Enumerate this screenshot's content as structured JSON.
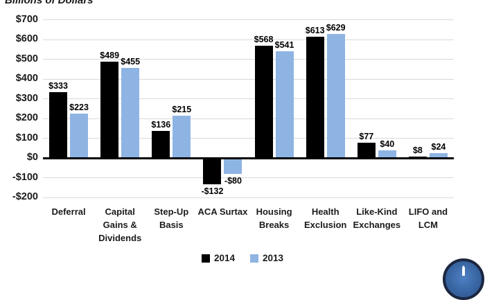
{
  "chart_data": {
    "type": "bar",
    "title": "Billions of Dollars",
    "categories": [
      "Deferral",
      "Capital Gains & Dividends",
      "Step-Up Basis",
      "ACA Surtax",
      "Housing Breaks",
      "Health Exclusion",
      "Like-Kind Exchanges",
      "LIFO and LCM"
    ],
    "category_lines": [
      [
        "Deferral"
      ],
      [
        "Capital",
        "Gains &",
        "Dividends"
      ],
      [
        "Step-Up",
        "Basis"
      ],
      [
        "ACA Surtax"
      ],
      [
        "Housing",
        "Breaks"
      ],
      [
        "Health",
        "Exclusion"
      ],
      [
        "Like-Kind",
        "Exchanges"
      ],
      [
        "LIFO and",
        "LCM"
      ]
    ],
    "series": [
      {
        "name": "2014",
        "color": "#000000",
        "values": [
          333,
          489,
          136,
          -132,
          568,
          613,
          77,
          8
        ]
      },
      {
        "name": "2013",
        "color": "#8EB4E3",
        "values": [
          223,
          455,
          215,
          -80,
          541,
          629,
          40,
          24
        ]
      }
    ],
    "data_labels": [
      [
        "$333",
        "$489",
        "$136",
        "-$132",
        "$568",
        "$613",
        "$77",
        "$8"
      ],
      [
        "$223",
        "$455",
        "$215",
        "-$80",
        "$541",
        "$629",
        "$40",
        "$24"
      ]
    ],
    "ylim": [
      -200,
      700
    ],
    "ytick_step": 100,
    "ytick_labels": [
      "$700",
      "$600",
      "$500",
      "$400",
      "$300",
      "$200",
      "$100",
      "$0",
      "-$100",
      "-$200"
    ],
    "grid": true,
    "gridline_color": "#d9d9d9",
    "legend_position": "bottom"
  },
  "legend": {
    "items": [
      {
        "label": "2014",
        "color": "#000000"
      },
      {
        "label": "2013",
        "color": "#8EB4E3"
      }
    ]
  },
  "logo": {
    "name": "tax-foundation-seal",
    "ring_color": "#1b2640",
    "fill_color": "#36639f"
  }
}
